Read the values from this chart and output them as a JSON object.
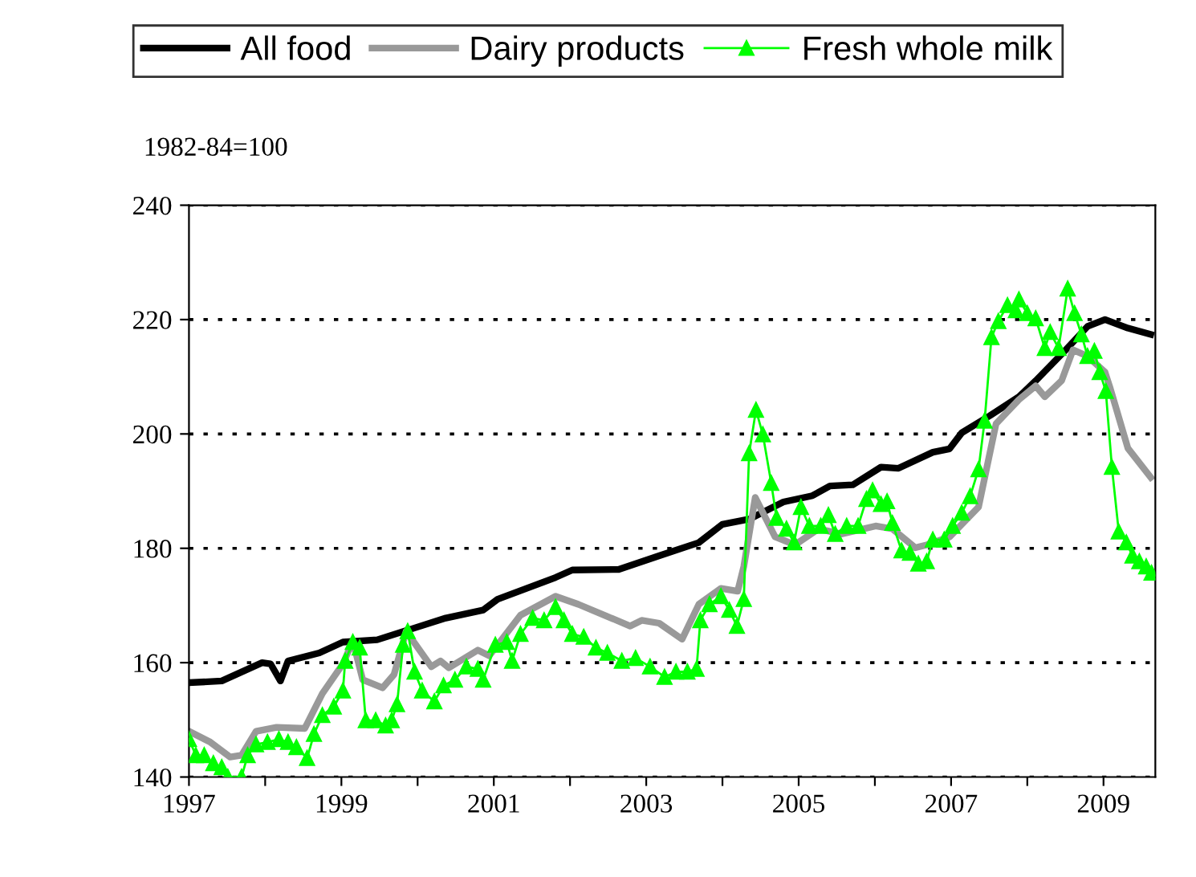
{
  "chart_data": {
    "type": "line",
    "annotations": [
      "1982-84=100"
    ],
    "xlim": [
      1997.0,
      2009.68
    ],
    "ylim": [
      140,
      240
    ],
    "xticks": [
      1997,
      {
        "value": 1998,
        "label": null
      },
      1999,
      {
        "value": 2000,
        "label": null
      },
      2001,
      {
        "value": 2002,
        "label": null
      },
      2003,
      {
        "value": 2004,
        "label": null
      },
      2005,
      {
        "value": 2006,
        "label": null
      },
      2007,
      {
        "value": 2008,
        "label": null
      },
      2009
    ],
    "yticks": [
      140,
      160,
      180,
      200,
      220,
      240
    ],
    "grid": "y",
    "legend": "top",
    "line_style": "solid",
    "series": [
      {
        "name": "All food",
        "color": "#000000",
        "marker": "none",
        "x": [
          1997.0,
          1997.43,
          1997.96,
          1998.07,
          1998.2,
          1998.3,
          1998.71,
          1999.02,
          1999.47,
          1999.92,
          2000.37,
          2000.86,
          2001.05,
          2001.43,
          2001.81,
          2002.03,
          2002.64,
          2003.17,
          2003.69,
          2004.0,
          2004.35,
          2004.8,
          2005.18,
          2005.41,
          2005.71,
          2006.08,
          2006.31,
          2006.76,
          2006.98,
          2007.14,
          2007.51,
          2007.89,
          2008.11,
          2008.49,
          2008.79,
          2009.02,
          2009.32,
          2009.62
        ],
        "values": [
          156.5,
          156.8,
          160,
          159.8,
          156.8,
          160.3,
          161.7,
          163.6,
          164,
          165.9,
          167.8,
          169.2,
          171.1,
          173,
          174.9,
          176.2,
          176.3,
          178.7,
          181,
          184.2,
          185.1,
          188.1,
          189.2,
          190.9,
          191.1,
          194.2,
          194,
          196.8,
          197.4,
          200.2,
          203.2,
          206.5,
          209.3,
          214.5,
          218.8,
          220,
          218.5,
          217.4
        ]
      },
      {
        "name": "Dairy products",
        "color": "#999999",
        "marker": "none",
        "x": [
          1997.0,
          1997.28,
          1997.54,
          1997.69,
          1997.88,
          1998.15,
          1998.52,
          1998.75,
          1999.02,
          1999.15,
          1999.28,
          1999.54,
          1999.69,
          1999.85,
          2000.18,
          2000.3,
          2000.41,
          2000.79,
          2000.94,
          2001.35,
          2001.81,
          2002.11,
          2002.79,
          2002.94,
          2003.17,
          2003.47,
          2003.69,
          2003.98,
          2004.2,
          2004.28,
          2004.43,
          2004.69,
          2004.95,
          2005.26,
          2005.56,
          2006.01,
          2006.23,
          2006.53,
          2006.68,
          2006.98,
          2007.36,
          2007.59,
          2007.89,
          2008.11,
          2008.23,
          2008.45,
          2008.6,
          2008.79,
          2009.02,
          2009.09,
          2009.32,
          2009.62
        ],
        "values": [
          148,
          146.1,
          143.5,
          143.8,
          148,
          148.7,
          148.5,
          154.6,
          159.8,
          163.8,
          157,
          155.6,
          157.9,
          165.5,
          159.3,
          160.3,
          159.1,
          162.2,
          161.2,
          168.3,
          171.6,
          170.2,
          166.4,
          167.4,
          166.9,
          164.1,
          170.2,
          173,
          172.5,
          176.8,
          188.9,
          182,
          180.6,
          183.4,
          182.5,
          183.9,
          183.4,
          180.1,
          180.6,
          182,
          187.2,
          201.8,
          206,
          208.4,
          206.5,
          209.3,
          214.7,
          213.6,
          210.8,
          207.9,
          197.5,
          192.4
        ]
      },
      {
        "name": "Fresh whole milk",
        "color": "#00ff00",
        "marker": "triangle",
        "x": [
          1997.0,
          1997.09,
          1997.2,
          1997.32,
          1997.43,
          1997.51,
          1997.69,
          1997.77,
          1997.88,
          1998.03,
          1998.18,
          1998.3,
          1998.41,
          1998.55,
          1998.64,
          1998.75,
          1998.9,
          1999.02,
          1999.05,
          1999.15,
          1999.24,
          1999.32,
          1999.45,
          1999.58,
          1999.66,
          1999.73,
          1999.81,
          1999.87,
          1999.96,
          2000.06,
          2000.22,
          2000.34,
          2000.49,
          2000.64,
          2000.79,
          2000.86,
          2001.02,
          2001.17,
          2001.24,
          2001.35,
          2001.51,
          2001.66,
          2001.81,
          2001.92,
          2002.03,
          2002.18,
          2002.34,
          2002.49,
          2002.68,
          2002.86,
          2003.05,
          2003.24,
          2003.39,
          2003.54,
          2003.66,
          2003.71,
          2003.83,
          2003.98,
          2004.09,
          2004.19,
          2004.28,
          2004.35,
          2004.44,
          2004.53,
          2004.64,
          2004.71,
          2004.84,
          2004.94,
          2005.03,
          2005.14,
          2005.29,
          2005.39,
          2005.48,
          2005.63,
          2005.78,
          2005.89,
          2005.97,
          2006.08,
          2006.16,
          2006.23,
          2006.35,
          2006.46,
          2006.57,
          2006.68,
          2006.76,
          2006.91,
          2007.02,
          2007.14,
          2007.25,
          2007.36,
          2007.44,
          2007.53,
          2007.62,
          2007.74,
          2007.85,
          2007.89,
          2008.0,
          2008.11,
          2008.23,
          2008.3,
          2008.41,
          2008.53,
          2008.62,
          2008.71,
          2008.79,
          2008.88,
          2008.95,
          2009.03,
          2009.11,
          2009.2,
          2009.3,
          2009.38,
          2009.47,
          2009.56,
          2009.63
        ],
        "values": [
          146.6,
          143.8,
          143.8,
          142.4,
          141.7,
          140,
          140,
          143.8,
          145.7,
          146.1,
          146.6,
          146.1,
          145.2,
          143.3,
          147.5,
          150.8,
          152.3,
          155.1,
          160.3,
          163.6,
          162.6,
          149.9,
          149.9,
          149,
          149.9,
          152.7,
          163.1,
          165.5,
          158.4,
          155.1,
          153.2,
          156,
          157,
          159.3,
          158.9,
          157,
          163.1,
          163.6,
          160.3,
          165,
          167.8,
          167.4,
          169.7,
          167.4,
          165,
          164.5,
          162.6,
          161.7,
          160.3,
          160.8,
          159.3,
          157.5,
          158.4,
          158.4,
          158.9,
          167.4,
          170.2,
          171.6,
          169.2,
          166.4,
          171.1,
          196.6,
          204.2,
          199.9,
          191.4,
          185.3,
          183.4,
          181,
          187.2,
          183.9,
          183.9,
          185.8,
          182.5,
          183.9,
          183.9,
          188.6,
          190.1,
          187.7,
          188.2,
          184.4,
          179.6,
          179.2,
          177.3,
          177.7,
          181.5,
          181.5,
          183.9,
          186.2,
          189.1,
          193.8,
          202.3,
          216.9,
          219.7,
          222.5,
          221.6,
          223.5,
          221.1,
          220.2,
          215,
          217.8,
          215,
          225.4,
          221.1,
          217.4,
          213.6,
          214.5,
          210.8,
          207.5,
          194.2,
          182.9,
          181,
          178.7,
          177.7,
          176.8,
          175.7
        ]
      }
    ]
  }
}
